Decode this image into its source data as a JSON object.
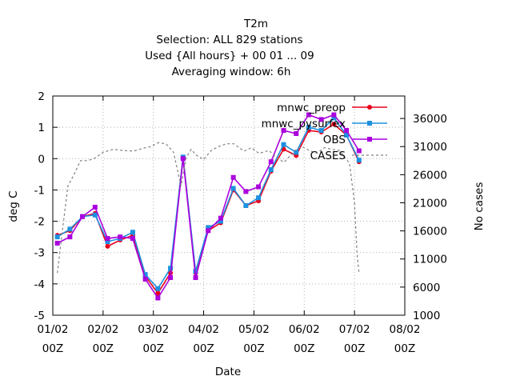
{
  "chart_data": {
    "type": "line",
    "title_lines": [
      "T2m",
      "Selection: ALL    829 stations",
      "Used {All hours} + 00 01 ... 09",
      "Averaging window:  6h"
    ],
    "xlabel": "Date",
    "ylabel": "deg C",
    "y2label": "No cases",
    "x_ticks": [
      {
        "x": 0,
        "line1": "01/02",
        "line2": "00Z"
      },
      {
        "x": 1,
        "line1": "02/02",
        "line2": "00Z"
      },
      {
        "x": 2,
        "line1": "03/02",
        "line2": "00Z"
      },
      {
        "x": 3,
        "line1": "04/02",
        "line2": "00Z"
      },
      {
        "x": 4,
        "line1": "05/02",
        "line2": "00Z"
      },
      {
        "x": 5,
        "line1": "06/02",
        "line2": "00Z"
      },
      {
        "x": 6,
        "line1": "07/02",
        "line2": "00Z"
      },
      {
        "x": 7,
        "line1": "08/02",
        "line2": "00Z"
      }
    ],
    "xlim": [
      0,
      7
    ],
    "ylim": [
      -5,
      2
    ],
    "y_ticks": [
      -5,
      -4,
      -3,
      -2,
      -1,
      0,
      1,
      2
    ],
    "y2lim": [
      1000,
      40000
    ],
    "y2_ticks": [
      1000,
      6000,
      11000,
      16000,
      21000,
      26000,
      31000,
      36000
    ],
    "x": [
      0.09,
      0.34,
      0.59,
      0.84,
      1.09,
      1.34,
      1.59,
      1.84,
      2.09,
      2.34,
      2.59,
      2.84,
      3.09,
      3.34,
      3.59,
      3.84,
      4.09,
      4.34,
      4.59,
      4.84,
      5.09,
      5.34,
      5.59,
      5.84,
      6.09
    ],
    "series": [
      {
        "name": "mnwc_preop",
        "axis": "y",
        "color": "#e8001c",
        "marker": "circle",
        "values": [
          -2.45,
          -2.3,
          -1.85,
          -1.75,
          -2.8,
          -2.6,
          -2.45,
          -3.75,
          -4.3,
          -3.65,
          0.05,
          -3.65,
          -2.3,
          -2.05,
          -1.0,
          -1.5,
          -1.35,
          -0.4,
          0.3,
          0.1,
          0.9,
          0.85,
          1.1,
          0.75,
          -0.1
        ]
      },
      {
        "name": "mnwc_pysurfex",
        "axis": "y",
        "color": "#1e90e0",
        "marker": "square",
        "values": [
          -2.5,
          -2.25,
          -1.85,
          -1.8,
          -2.65,
          -2.55,
          -2.35,
          -3.7,
          -4.15,
          -3.5,
          0.05,
          -3.6,
          -2.2,
          -2.0,
          -0.95,
          -1.5,
          -1.25,
          -0.35,
          0.45,
          0.2,
          1.0,
          0.9,
          1.3,
          0.75,
          -0.05
        ]
      },
      {
        "name": "OBS",
        "axis": "y",
        "color": "#aa00dd",
        "marker": "square",
        "values": [
          -2.7,
          -2.5,
          -1.85,
          -1.55,
          -2.55,
          -2.5,
          -2.55,
          -3.85,
          -4.45,
          -3.8,
          0.0,
          -3.8,
          -2.3,
          -1.9,
          -0.6,
          -1.05,
          -0.9,
          -0.1,
          0.9,
          0.8,
          1.4,
          1.25,
          1.4,
          0.9,
          0.25
        ]
      },
      {
        "name": "CASES",
        "axis": "y2",
        "color": "#808080",
        "dashed": true,
        "x": [
          0.09,
          0.15,
          0.3,
          0.42,
          0.55,
          0.7,
          0.85,
          1.0,
          1.2,
          1.4,
          1.6,
          1.8,
          1.95,
          2.1,
          2.25,
          2.4,
          2.55,
          2.65,
          2.75,
          2.85,
          3.0,
          3.15,
          3.3,
          3.45,
          3.6,
          3.8,
          3.95,
          4.1,
          4.3,
          4.45,
          4.6,
          4.8,
          4.95,
          5.1,
          5.25,
          5.4,
          5.55,
          5.7,
          5.9,
          6.0,
          6.05,
          6.09
        ],
        "values": [
          8500,
          13000,
          24000,
          26000,
          28500,
          28500,
          29000,
          30000,
          30500,
          30300,
          30200,
          30700,
          31000,
          31700,
          31500,
          30000,
          24000,
          29000,
          30500,
          29500,
          28700,
          30300,
          31000,
          31500,
          31500,
          30200,
          30800,
          29800,
          30300,
          29000,
          28200,
          30200,
          31000,
          30300,
          29800,
          30800,
          30500,
          30300,
          28000,
          21000,
          12000,
          8500
        ]
      }
    ],
    "legend_position": "top-right"
  }
}
